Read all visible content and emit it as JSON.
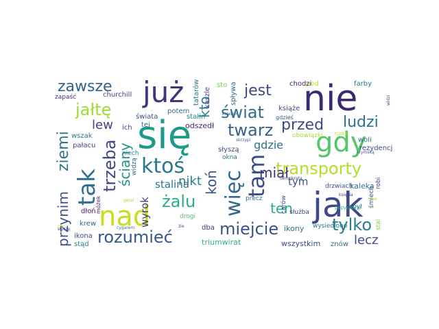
{
  "cloud": {
    "words": [
      {
        "text": "się",
        "color": "#1f9a8a"
      },
      {
        "text": "nie",
        "color": "#3b2a72"
      },
      {
        "text": "jak",
        "color": "#3d4a89"
      },
      {
        "text": "już",
        "color": "#46337e"
      },
      {
        "text": "gdy",
        "color": "#54c568"
      },
      {
        "text": "nad",
        "color": "#c2df23"
      },
      {
        "text": "tak",
        "color": "#2e6f8e"
      },
      {
        "text": "ktoś",
        "color": "#2a788e"
      },
      {
        "text": "tam",
        "color": "#3e4c8a"
      },
      {
        "text": "więc",
        "color": "#31688e"
      },
      {
        "text": "miejcie",
        "color": "#3b518b"
      },
      {
        "text": "rozumieć",
        "color": "#39568c"
      },
      {
        "text": "transporty",
        "color": "#b5de2b"
      },
      {
        "text": "tylko",
        "color": "#277f8e"
      },
      {
        "text": "ludzi",
        "color": "#2c728e"
      },
      {
        "text": "przed",
        "color": "#3e4989"
      },
      {
        "text": "świat",
        "color": "#2f6c8e"
      },
      {
        "text": "twarz",
        "color": "#355f8d"
      },
      {
        "text": "jest",
        "color": "#3f4788"
      },
      {
        "text": "zawsze",
        "color": "#33638d"
      },
      {
        "text": "jałtę",
        "color": "#9fda3a"
      },
      {
        "text": "żalu",
        "color": "#2ab07f"
      },
      {
        "text": "trzeba",
        "color": "#404688"
      },
      {
        "text": "ziemi",
        "color": "#2b758e"
      },
      {
        "text": "przynim",
        "color": "#3c4f8a"
      },
      {
        "text": "ściany",
        "color": "#21918c"
      },
      {
        "text": "kto",
        "color": "#287d8e"
      },
      {
        "text": "lew",
        "color": "#424086"
      },
      {
        "text": "koń",
        "color": "#3a548c"
      },
      {
        "text": "miał",
        "color": "#46327e"
      },
      {
        "text": "nikt",
        "color": "#277e8e"
      },
      {
        "text": "ten",
        "color": "#29af7f"
      },
      {
        "text": "lecz",
        "color": "#3d4e8a"
      },
      {
        "text": "gdzie",
        "color": "#2d718e"
      },
      {
        "text": "stalina",
        "color": "#2a768e"
      },
      {
        "text": "wyrok",
        "color": "#453781"
      },
      {
        "text": "tym",
        "color": "#3c508b"
      },
      {
        "text": "kaleka",
        "color": "#2e6e8e"
      },
      {
        "text": "ikony",
        "color": "#2d708e"
      },
      {
        "text": "triumwirat",
        "color": "#2db27d"
      },
      {
        "text": "wszystkim",
        "color": "#3f4889"
      },
      {
        "text": "znów",
        "color": "#2f6b8e"
      },
      {
        "text": "krew",
        "color": "#33638d"
      },
      {
        "text": "ikona",
        "color": "#3e4a89"
      },
      {
        "text": "stąd",
        "color": "#26828e"
      },
      {
        "text": "dłoń",
        "color": "#481a6c"
      },
      {
        "text": "pałacu",
        "color": "#3f4788"
      },
      {
        "text": "wszak",
        "color": "#2a788e"
      },
      {
        "text": "churchill",
        "color": "#424186"
      },
      {
        "text": "zapaść",
        "color": "#472c7a"
      },
      {
        "text": "ich",
        "color": "#3e4989"
      },
      {
        "text": "tej",
        "color": "#31688e"
      },
      {
        "text": "stalin",
        "color": "#25848e"
      },
      {
        "text": "odszedł",
        "color": "#482475"
      },
      {
        "text": "świata",
        "color": "#3b528b"
      },
      {
        "text": "potem",
        "color": "#2f6b8e"
      },
      {
        "text": "książe",
        "color": "#3e4c8a"
      },
      {
        "text": "pod",
        "color": "#c8e020"
      },
      {
        "text": "chodzi",
        "color": "#481f70"
      },
      {
        "text": "farby",
        "color": "#2c718e"
      },
      {
        "text": "sto",
        "color": "#6ece58"
      },
      {
        "text": "spływa",
        "color": "#33628d"
      },
      {
        "text": "kaszle",
        "color": "#404588"
      },
      {
        "text": "tatarów",
        "color": "#2a768e"
      },
      {
        "text": "gdzieś",
        "color": "#355e8d"
      },
      {
        "text": "woli",
        "color": "#2c738e"
      },
      {
        "text": "rezydencja",
        "color": "#3f4788"
      },
      {
        "text": "obowiązki",
        "color": "#a8db34"
      },
      {
        "text": "niech",
        "color": "#26828e"
      },
      {
        "text": "słyszą",
        "color": "#3e4989"
      },
      {
        "text": "okna",
        "color": "#2a788e"
      },
      {
        "text": "drzwiach",
        "color": "#3b528b"
      },
      {
        "text": "widzą",
        "color": "#31688e"
      },
      {
        "text": "precz",
        "color": "#2e6e8e"
      },
      {
        "text": "drogi",
        "color": "#52c569"
      },
      {
        "text": "dba",
        "color": "#46337e"
      },
      {
        "text": "służba",
        "color": "#3f4889"
      },
      {
        "text": "był",
        "color": "#33638d"
      },
      {
        "text": "carów",
        "color": "#3d4e8a"
      },
      {
        "text": "wysiedlono",
        "color": "#2b758e"
      },
      {
        "text": "stal",
        "color": "#7ad151"
      },
      {
        "text": "śmiech",
        "color": "#3b528b"
      },
      {
        "text": "robi",
        "color": "#424086"
      },
      {
        "text": "swe",
        "color": "#a0da39"
      },
      {
        "text": "popychany",
        "color": "#2db27d"
      },
      {
        "text": "demokratą",
        "color": "#3e4a89"
      },
      {
        "text": "księcia",
        "color": "#404688"
      },
      {
        "text": "móżek",
        "color": "#482173"
      },
      {
        "text": "kalekim",
        "color": "#3b518b"
      },
      {
        "text": "skrzypi",
        "color": "#31688e"
      },
      {
        "text": "ruska",
        "color": "#b5de2b"
      },
      {
        "text": "krymską",
        "color": "#3b528b"
      },
      {
        "text": "widzi",
        "color": "#3f4788"
      },
      {
        "text": "cygarem",
        "color": "#2a788e"
      },
      {
        "text": "słyszy",
        "color": "#472d7b"
      },
      {
        "text": "złą",
        "color": "#bddf26"
      },
      {
        "text": "geral",
        "color": "#a0da39"
      },
      {
        "text": "żle",
        "color": "#3e4c8a"
      }
    ]
  }
}
